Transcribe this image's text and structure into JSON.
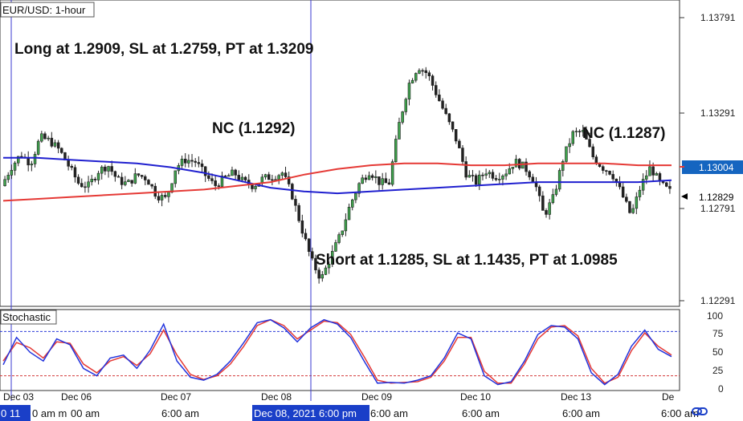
{
  "chart_data": {
    "type": "candlestick",
    "title": "EUR/USD: 1-hour",
    "price_axis": {
      "ticks": [
        "1.13791",
        "1.13291",
        "1.12791",
        "1.12291"
      ],
      "tick_values": [
        1.13791,
        1.13291,
        1.12791,
        1.12291
      ],
      "ylim": [
        1.12215,
        1.13855
      ]
    },
    "price_tags": [
      {
        "label": "1.13004",
        "value": 1.13004,
        "color": "#1565c0"
      },
      {
        "label": "1.12829",
        "value": 1.12829,
        "color": "#000000"
      }
    ],
    "moving_averages": [
      {
        "color": "#1f1fcf",
        "values": [
          1.1301,
          1.1301,
          1.13,
          1.1299,
          1.1298,
          1.1296,
          1.1293,
          1.1289,
          1.1285,
          1.1283,
          1.1282,
          1.1283,
          1.1284,
          1.1285,
          1.1286,
          1.1287,
          1.1288,
          1.1288,
          1.1288,
          1.1288,
          1.1289
        ]
      },
      {
        "color": "#e53935",
        "values": [
          1.1278,
          1.1279,
          1.128,
          1.1281,
          1.1282,
          1.1283,
          1.1284,
          1.1286,
          1.1288,
          1.1292,
          1.1295,
          1.1297,
          1.1298,
          1.1298,
          1.1297,
          1.1297,
          1.1298,
          1.1298,
          1.1298,
          1.1297,
          1.1297
        ]
      }
    ],
    "annotations": [
      "Long at 1.2909, SL at 1.2759, PT at 1.3209",
      "NC (1.1292)",
      "NC (1.1287)",
      "Short at 1.1285, SL at 1.1435, PT at 1.0985"
    ],
    "close_path": [
      1.1286,
      1.1296,
      1.1303,
      1.1298,
      1.1312,
      1.131,
      1.1305,
      1.1296,
      1.1287,
      1.1286,
      1.1294,
      1.1297,
      1.1289,
      1.1287,
      1.1292,
      1.129,
      1.1281,
      1.1279,
      1.1296,
      1.13,
      1.1299,
      1.1292,
      1.1286,
      1.129,
      1.1293,
      1.1288,
      1.1286,
      1.129,
      1.1291,
      1.1293,
      1.1281,
      1.1263,
      1.1246,
      1.1236,
      1.1248,
      1.126,
      1.1276,
      1.1288,
      1.1294,
      1.1288,
      1.1287,
      1.1318,
      1.134,
      1.135,
      1.1346,
      1.1334,
      1.1322,
      1.131,
      1.1292,
      1.1288,
      1.1294,
      1.1291,
      1.1293,
      1.1299,
      1.1296,
      1.1289,
      1.127,
      1.128,
      1.1301,
      1.1314,
      1.1315,
      1.1302,
      1.1296,
      1.1293,
      1.1282,
      1.127,
      1.1286,
      1.1296,
      1.1287,
      1.1283
    ],
    "stochastic": {
      "label": "Stochastic",
      "ticks": [
        "100",
        "75",
        "50",
        "25",
        "0"
      ],
      "tick_values": [
        100,
        75,
        50,
        25,
        0
      ],
      "levels": [
        80,
        20
      ],
      "ylim": [
        0,
        100
      ],
      "k": [
        35,
        72,
        52,
        40,
        70,
        62,
        30,
        20,
        44,
        48,
        30,
        55,
        90,
        40,
        18,
        14,
        22,
        40,
        65,
        92,
        96,
        85,
        66,
        85,
        96,
        90,
        72,
        40,
        10,
        11,
        10,
        14,
        20,
        44,
        78,
        70,
        20,
        8,
        12,
        40,
        76,
        88,
        86,
        70,
        24,
        8,
        22,
        60,
        82,
        56,
        46
      ],
      "d": [
        40,
        65,
        58,
        44,
        66,
        64,
        36,
        24,
        40,
        46,
        34,
        50,
        82,
        48,
        22,
        15,
        20,
        36,
        60,
        88,
        96,
        88,
        70,
        82,
        94,
        92,
        76,
        46,
        14,
        10,
        11,
        12,
        18,
        40,
        72,
        72,
        26,
        10,
        10,
        36,
        70,
        86,
        88,
        74,
        30,
        10,
        18,
        54,
        78,
        60,
        48
      ]
    },
    "x_axis": {
      "day_labels": [
        "Dec 03",
        "Dec 06",
        "Dec 07",
        "Dec 08",
        "Dec 09",
        "Dec 10",
        "Dec 13",
        "De"
      ],
      "time_labels": [
        "0 11",
        "0 am m",
        "00 am",
        "6:00 am",
        "6:00 am",
        "6:00 am",
        "6:00 am",
        "6:00 am",
        "6:0"
      ],
      "highlight": "Dec 08, 2021 6:00 pm"
    }
  }
}
